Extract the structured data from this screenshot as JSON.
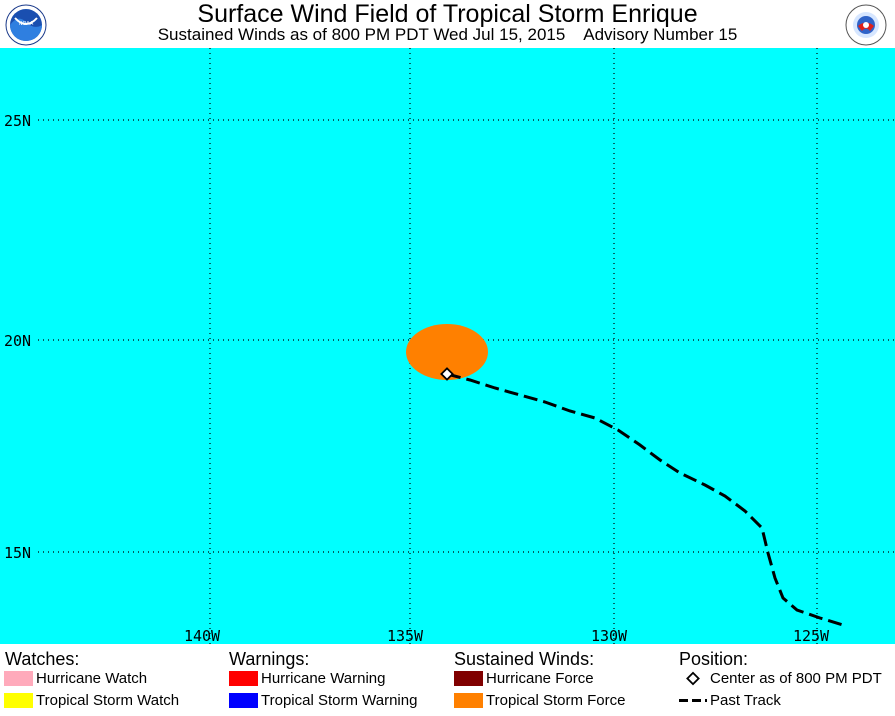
{
  "header": {
    "title": "Surface Wind Field of Tropical Storm Enrique",
    "subtitle": "Sustained Winds as of 800 PM PDT Wed Jul 15, 2015    Advisory Number 15",
    "left_logo": "NOAA",
    "right_logo": "NATIONAL WEATHER SERVICE"
  },
  "map": {
    "ocean_color": "#00ffff",
    "lat_labels": [
      "25N",
      "20N",
      "15N"
    ],
    "lon_labels": [
      "140W",
      "135W",
      "130W",
      "125W"
    ],
    "tropical_storm_force_color": "#ff8000",
    "center_icon": "diamond-icon",
    "track_style": "dashed-black"
  },
  "legend": {
    "watches": {
      "heading": "Watches:",
      "items": [
        {
          "label": "Hurricane Watch",
          "color": "#ffaabb"
        },
        {
          "label": "Tropical Storm Watch",
          "color": "#ffff00"
        }
      ]
    },
    "warnings": {
      "heading": "Warnings:",
      "items": [
        {
          "label": "Hurricane Warning",
          "color": "#ff0000"
        },
        {
          "label": "Tropical Storm Warning",
          "color": "#0000ff"
        }
      ]
    },
    "winds": {
      "heading": "Sustained Winds:",
      "items": [
        {
          "label": "Hurricane Force",
          "color": "#800000"
        },
        {
          "label": "Tropical Storm Force",
          "color": "#ff8000"
        }
      ]
    },
    "position": {
      "heading": "Position:",
      "items": [
        {
          "label": "Center as of 800 PM PDT",
          "icon": "diamond-icon"
        },
        {
          "label": "Past Track",
          "icon": "dashed-line-icon"
        }
      ]
    }
  }
}
